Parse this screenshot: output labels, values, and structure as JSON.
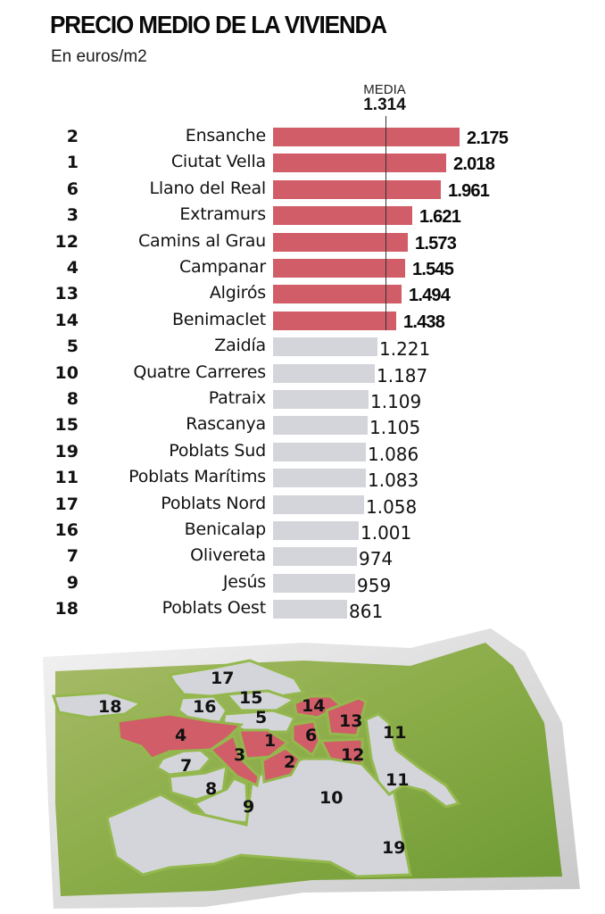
{
  "header": {
    "title": "PRECIO MEDIO DE LA VIVIENDA",
    "subtitle": "En euros/m2"
  },
  "mean": {
    "label": "MEDIA",
    "value": "1.314"
  },
  "colors": {
    "above_mean": "#d05d68",
    "below_mean": "#d3d5da",
    "map_green": "#8aac48",
    "map_district": "#d3d5da"
  },
  "rows": [
    {
      "rank": "2",
      "name": "Ensanche",
      "value": "2.175"
    },
    {
      "rank": "1",
      "name": "Ciutat Vella",
      "value": "2.018"
    },
    {
      "rank": "6",
      "name": "Llano del Real",
      "value": "1.961"
    },
    {
      "rank": "3",
      "name": "Extramurs",
      "value": "1.621"
    },
    {
      "rank": "12",
      "name": "Camins al Grau",
      "value": "1.573"
    },
    {
      "rank": "4",
      "name": "Campanar",
      "value": "1.545"
    },
    {
      "rank": "13",
      "name": "Algirós",
      "value": "1.494"
    },
    {
      "rank": "14",
      "name": "Benimaclet",
      "value": "1.438"
    },
    {
      "rank": "5",
      "name": "Zaidía",
      "value": "1.221"
    },
    {
      "rank": "10",
      "name": "Quatre Carreres",
      "value": "1.187"
    },
    {
      "rank": "8",
      "name": "Patraix",
      "value": "1.109"
    },
    {
      "rank": "15",
      "name": "Rascanya",
      "value": "1.105"
    },
    {
      "rank": "19",
      "name": "Poblats Sud",
      "value": "1.086"
    },
    {
      "rank": "11",
      "name": "Poblats Marítims",
      "value": "1.083"
    },
    {
      "rank": "17",
      "name": "Poblats Nord",
      "value": "1.058"
    },
    {
      "rank": "16",
      "name": "Benicalap",
      "value": "1.001"
    },
    {
      "rank": "7",
      "name": "Olivereta",
      "value": "974"
    },
    {
      "rank": "9",
      "name": "Jesús",
      "value": "959"
    },
    {
      "rank": "18",
      "name": "Poblats Oest",
      "value": "861"
    }
  ],
  "map": {
    "labels": [
      "17",
      "18",
      "16",
      "15",
      "5",
      "14",
      "13",
      "4",
      "1",
      "6",
      "3",
      "2",
      "12",
      "11",
      "7",
      "11",
      "8",
      "9",
      "10",
      "19"
    ],
    "highlighted_districts": [
      "1",
      "2",
      "3",
      "4",
      "6",
      "12",
      "13",
      "14"
    ]
  },
  "chart_data": {
    "type": "bar",
    "orientation": "horizontal",
    "title": "PRECIO MEDIO DE LA VIVIENDA",
    "subtitle": "En euros/m2",
    "xlabel": "",
    "ylabel": "",
    "categories": [
      "Ensanche",
      "Ciutat Vella",
      "Llano del Real",
      "Extramurs",
      "Camins al Grau",
      "Campanar",
      "Algirós",
      "Benimaclet",
      "Zaidía",
      "Quatre Carreres",
      "Patraix",
      "Rascanya",
      "Poblats Sud",
      "Poblats Marítims",
      "Poblats Nord",
      "Benicalap",
      "Olivereta",
      "Jesús",
      "Poblats Oest"
    ],
    "district_numbers": [
      2,
      1,
      6,
      3,
      12,
      4,
      13,
      14,
      5,
      10,
      8,
      15,
      19,
      11,
      17,
      16,
      7,
      9,
      18
    ],
    "values": [
      2175,
      2018,
      1961,
      1621,
      1573,
      1545,
      1494,
      1438,
      1221,
      1187,
      1109,
      1105,
      1086,
      1083,
      1058,
      1001,
      974,
      959,
      861
    ],
    "reference_line": {
      "label": "MEDIA",
      "value": 1314
    },
    "highlight_rule": "values above mean in red, below mean in grey",
    "grid": false,
    "legend": null
  }
}
